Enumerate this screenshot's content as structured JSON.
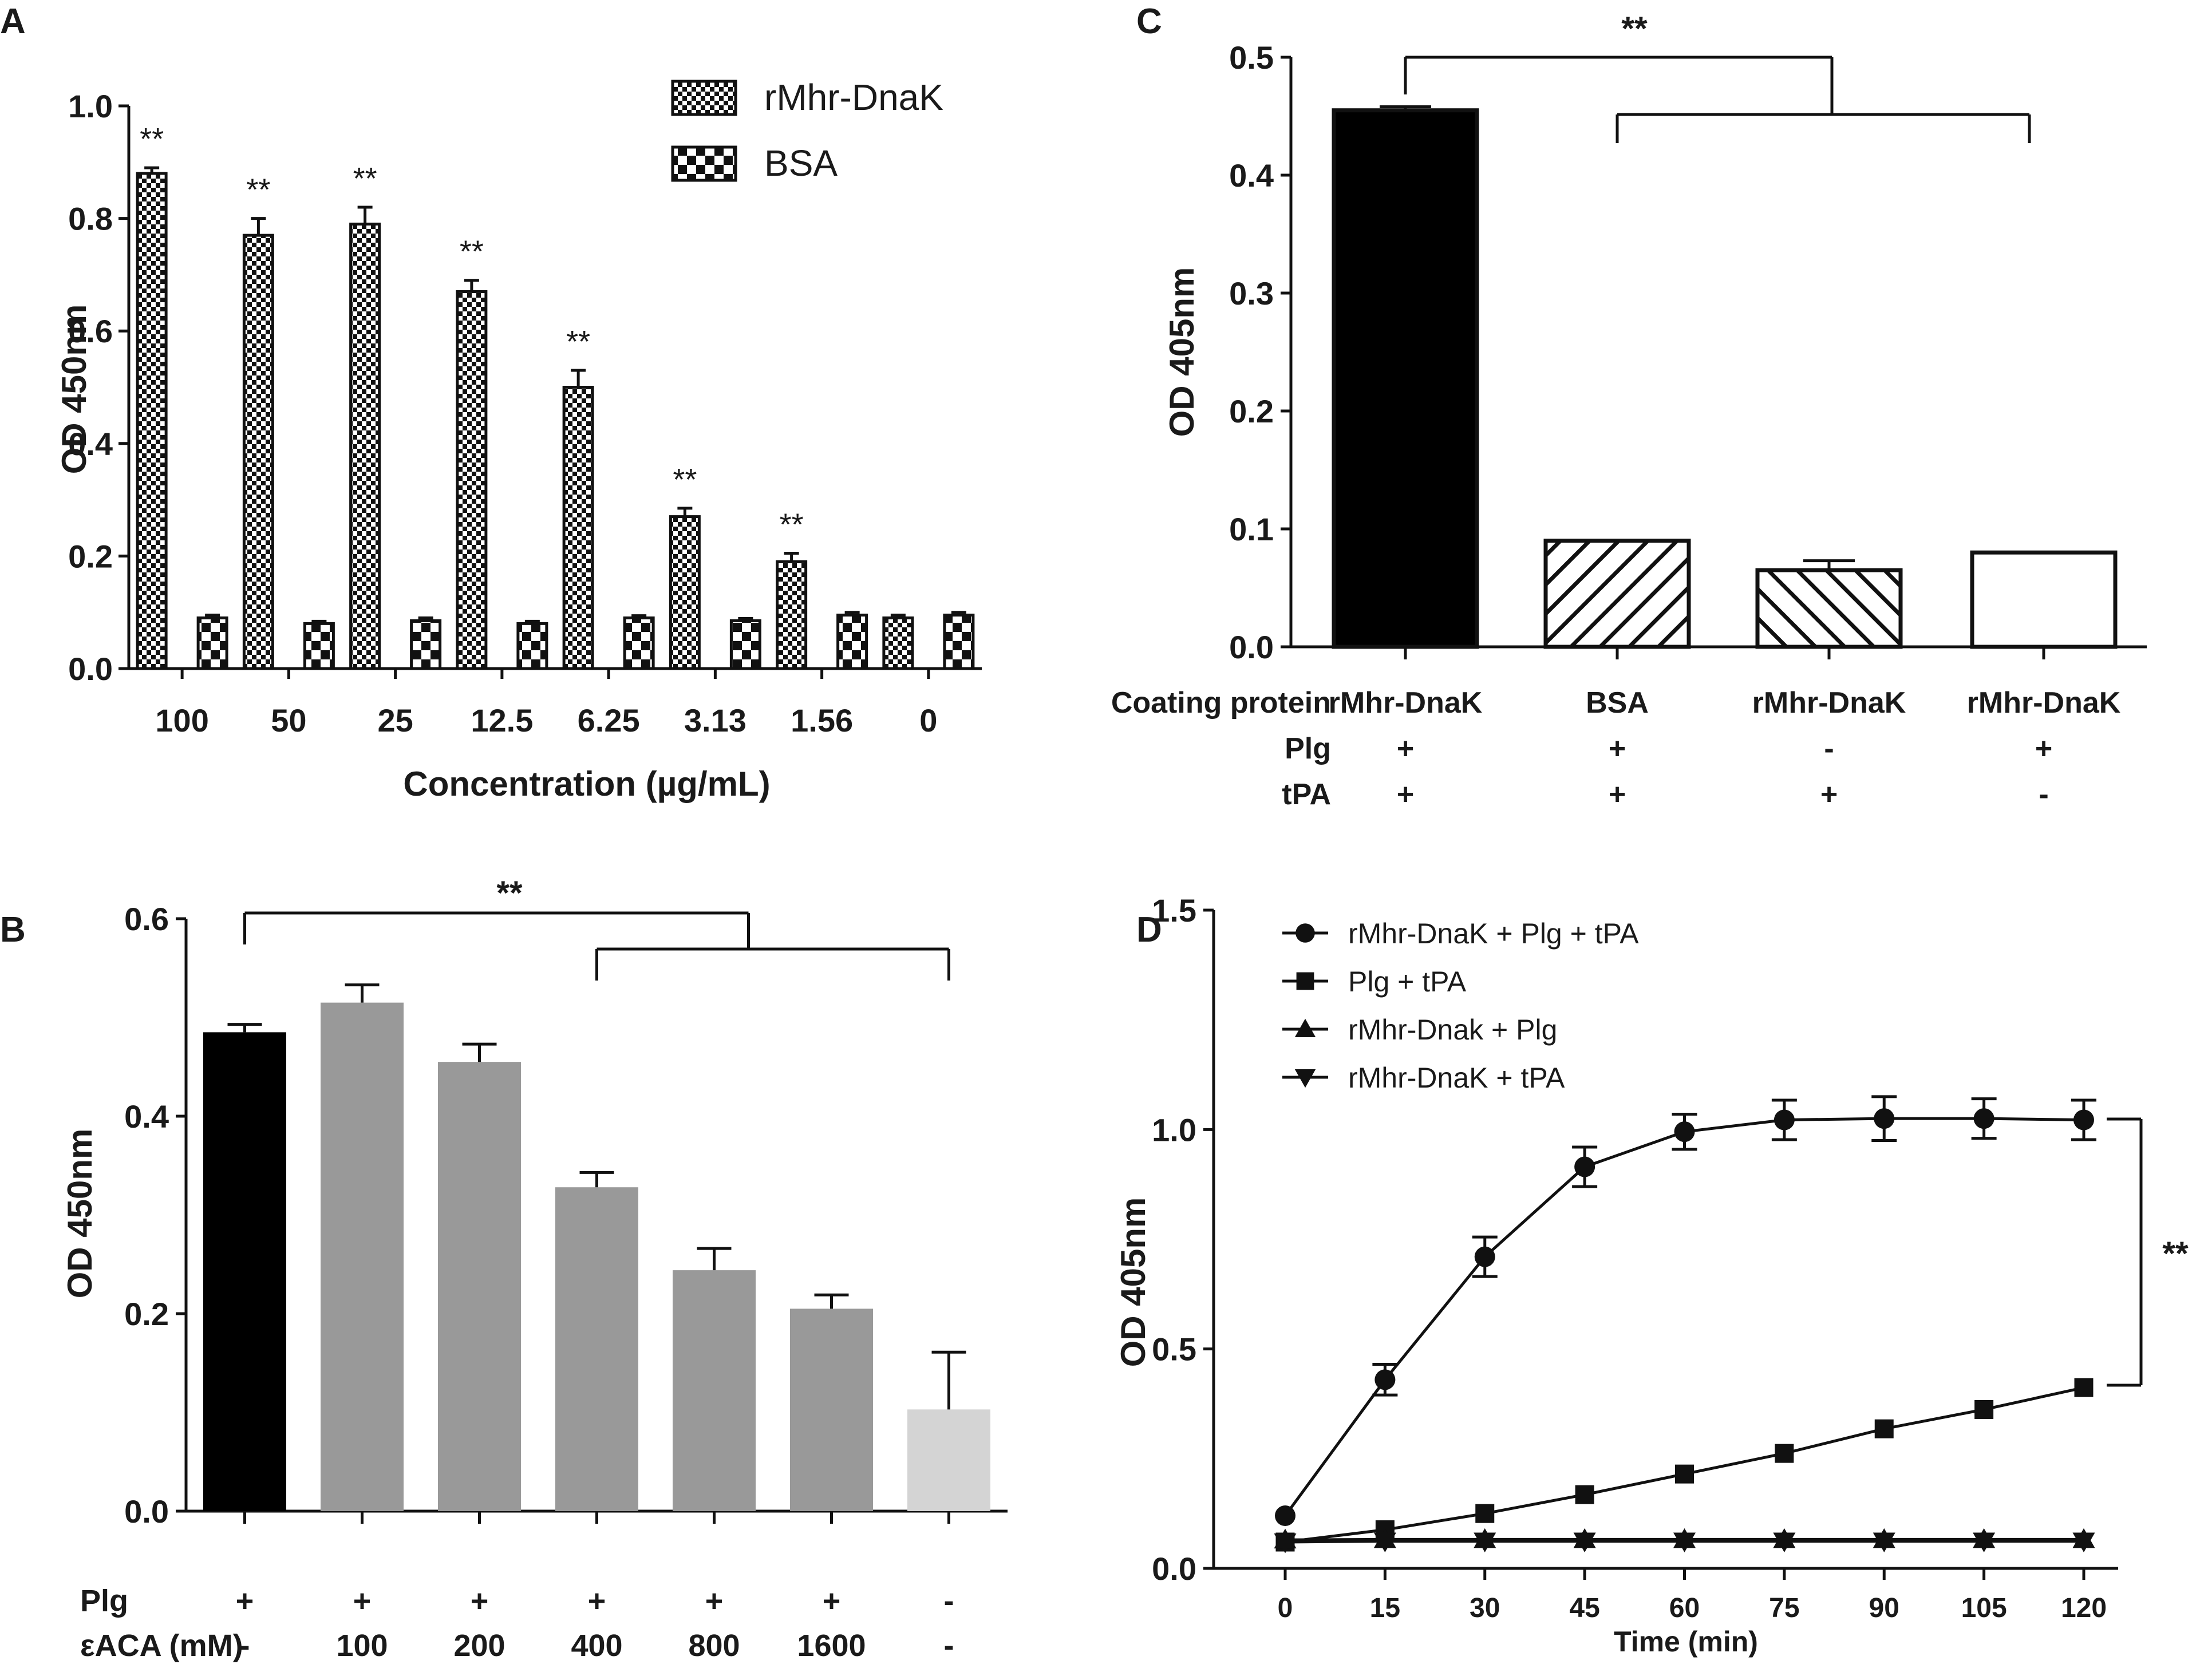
{
  "panels": {
    "a": {
      "label": "A",
      "chart_data": {
        "type": "bar",
        "title": "",
        "xlabel": "Concentration (µg/mL)",
        "ylabel": "OD 450nm",
        "categories": [
          "100",
          "50",
          "25",
          "12.5",
          "6.25",
          "3.13",
          "1.56",
          "0"
        ],
        "ylim": [
          0,
          1.0
        ],
        "yticks": [
          "0.0",
          "0.2",
          "0.4",
          "0.6",
          "0.8",
          "1.0"
        ],
        "series": [
          {
            "name": "rMhr-DnaK",
            "values": [
              0.88,
              0.77,
              0.79,
              0.67,
              0.5,
              0.27,
              0.19,
              0.09
            ],
            "errors": [
              0.01,
              0.03,
              0.03,
              0.02,
              0.03,
              0.015,
              0.015,
              0.005
            ]
          },
          {
            "name": "BSA",
            "values": [
              0.09,
              0.08,
              0.085,
              0.08,
              0.09,
              0.085,
              0.095,
              0.095
            ],
            "errors": [
              0.005,
              0.004,
              0.005,
              0.004,
              0.004,
              0.004,
              0.005,
              0.005
            ]
          }
        ],
        "significance": [
          "**",
          "**",
          "**",
          "**",
          "**",
          "**",
          "**",
          ""
        ],
        "legend_position": "top-right"
      }
    },
    "b": {
      "label": "B",
      "chart_data": {
        "type": "bar",
        "title": "",
        "xlabel": "",
        "ylabel": "OD 450nm",
        "ylim": [
          0,
          0.6
        ],
        "yticks": [
          "0.0",
          "0.2",
          "0.4",
          "0.6"
        ],
        "values": [
          0.485,
          0.515,
          0.455,
          0.328,
          0.244,
          0.205,
          0.103
        ],
        "errors": [
          0.008,
          0.018,
          0.018,
          0.015,
          0.022,
          0.014,
          0.058
        ],
        "bar_colors": [
          "#000000",
          "#999999",
          "#999999",
          "#999999",
          "#999999",
          "#999999",
          "#d4d4d4"
        ],
        "condition_rows": [
          {
            "label": "Plg",
            "values": [
              "+",
              "+",
              "+",
              "+",
              "+",
              "+",
              "-"
            ]
          },
          {
            "label": "εACA (mM)",
            "values": [
              "-",
              "100",
              "200",
              "400",
              "800",
              "1600",
              "-"
            ]
          }
        ],
        "significance": "**"
      }
    },
    "c": {
      "label": "C",
      "chart_data": {
        "type": "bar",
        "title": "",
        "xlabel": "",
        "ylabel": "OD 405nm",
        "ylim": [
          0,
          0.5
        ],
        "yticks": [
          "0.0",
          "0.1",
          "0.2",
          "0.3",
          "0.4",
          "0.5"
        ],
        "values": [
          0.455,
          0.09,
          0.065,
          0.08
        ],
        "errors": [
          0.003,
          0.0,
          0.008,
          0.0
        ],
        "bar_fills": [
          "solid-black",
          "hatch-right",
          "hatch-left",
          "white"
        ],
        "condition_rows": [
          {
            "label": "Coating protein",
            "values": [
              "rMhr-DnaK",
              "BSA",
              "rMhr-DnaK",
              "rMhr-DnaK"
            ]
          },
          {
            "label": "Plg",
            "values": [
              "+",
              "+",
              "-",
              "+"
            ]
          },
          {
            "label": "tPA",
            "values": [
              "+",
              "+",
              "+",
              "-"
            ]
          }
        ],
        "significance": "**"
      }
    },
    "d": {
      "label": "D",
      "chart_data": {
        "type": "line",
        "title": "",
        "xlabel": "Time (min)",
        "ylabel": "OD 405nm",
        "x": [
          0,
          15,
          30,
          45,
          60,
          75,
          90,
          105,
          120
        ],
        "xticks": [
          "0",
          "15",
          "30",
          "45",
          "60",
          "75",
          "90",
          "105",
          "120"
        ],
        "xlim": [
          0,
          120
        ],
        "ylim": [
          0,
          1.5
        ],
        "yticks": [
          "0.0",
          "0.5",
          "1.0",
          "1.5"
        ],
        "series": [
          {
            "name": "rMhr-DnaK + Plg + tPA",
            "marker": "circle",
            "values": [
              0.12,
              0.43,
              0.71,
              0.915,
              0.995,
              1.022,
              1.025,
              1.025,
              1.022
            ],
            "errors": [
              0.0,
              0.035,
              0.045,
              0.045,
              0.04,
              0.045,
              0.05,
              0.045,
              0.045
            ]
          },
          {
            "name": "Plg + tPA",
            "marker": "square",
            "values": [
              0.06,
              0.088,
              0.125,
              0.168,
              0.215,
              0.262,
              0.318,
              0.362,
              0.412
            ],
            "errors": [
              0,
              0,
              0,
              0,
              0,
              0,
              0,
              0,
              0
            ]
          },
          {
            "name": "rMhr-Dnak + Plg",
            "marker": "triangle-up",
            "values": [
              0.065,
              0.066,
              0.066,
              0.066,
              0.066,
              0.066,
              0.066,
              0.066,
              0.066
            ],
            "errors": [
              0,
              0,
              0,
              0,
              0,
              0,
              0,
              0,
              0
            ]
          },
          {
            "name": "rMhr-DnaK + tPA",
            "marker": "triangle-down",
            "values": [
              0.06,
              0.062,
              0.062,
              0.062,
              0.062,
              0.062,
              0.062,
              0.062,
              0.062
            ],
            "errors": [
              0,
              0,
              0,
              0,
              0,
              0,
              0,
              0,
              0
            ]
          }
        ],
        "significance": "**",
        "legend_position": "top-left"
      }
    }
  }
}
